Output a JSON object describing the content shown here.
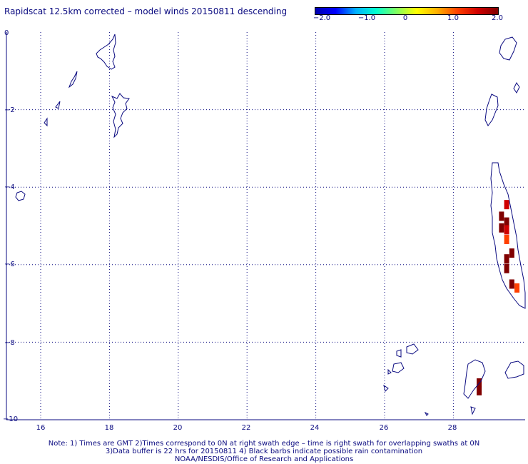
{
  "title": "Rapidscat 12.5km corrected – model winds 20150811 descending",
  "colorbar": {
    "ticks": [
      "−2.0",
      "−1.0",
      "0",
      "1.0",
      "2.0"
    ],
    "gradient": [
      "#0000b0",
      "#0000ff",
      "#00b0ff",
      "#00ffd0",
      "#80ff60",
      "#ffff00",
      "#ffb000",
      "#ff4000",
      "#d00000",
      "#800000"
    ]
  },
  "axes": {
    "x_ticks": [
      "16",
      "18",
      "20",
      "22",
      "24",
      "26",
      "28"
    ],
    "y_ticks": [
      "0",
      "−2",
      "−4",
      "−6",
      "−8",
      "−10"
    ]
  },
  "notes": {
    "line1": "Note: 1) Times are GMT 2)Times correspond to 0N at right swath edge – time is right swath for overlapping swaths at 0N",
    "line2": "3)Data buffer is 22 hrs for 20150811 4) Black barbs indicate possible rain contamination",
    "line3": "NOAA/NESDIS/Office of Research and Applications"
  },
  "colors": {
    "text": "#0a0a80",
    "coastline": "#0a0a80",
    "grid": "#0a0a80"
  },
  "data_cells": [
    {
      "lon": 29.55,
      "lat": -4.45,
      "value": 1.7
    },
    {
      "lon": 29.4,
      "lat": -4.75,
      "value": 2.0
    },
    {
      "lon": 29.55,
      "lat": -4.9,
      "value": 2.0
    },
    {
      "lon": 29.4,
      "lat": -5.05,
      "value": 1.8
    },
    {
      "lon": 29.55,
      "lat": -5.1,
      "value": 1.6
    },
    {
      "lon": 29.55,
      "lat": -5.35,
      "value": 1.3
    },
    {
      "lon": 29.7,
      "lat": -5.7,
      "value": 2.0
    },
    {
      "lon": 29.55,
      "lat": -5.85,
      "value": 2.0
    },
    {
      "lon": 29.55,
      "lat": -6.1,
      "value": 2.0
    },
    {
      "lon": 29.7,
      "lat": -6.5,
      "value": 1.8
    },
    {
      "lon": 29.85,
      "lat": -6.6,
      "value": 1.0
    },
    {
      "lon": 28.75,
      "lat": -9.05,
      "value": 2.0
    },
    {
      "lon": 28.75,
      "lat": -9.25,
      "value": 2.0
    }
  ]
}
